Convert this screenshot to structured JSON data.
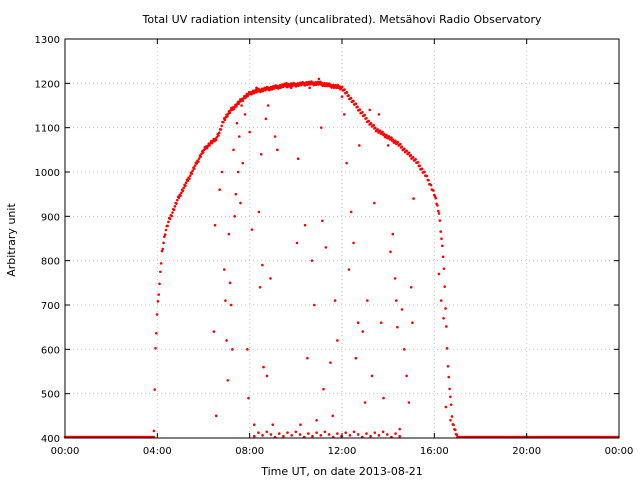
{
  "chart_data": {
    "type": "scatter",
    "title": "Total UV radiation intensity (uncalibrated). Metsähovi Radio Observatory",
    "xlabel": "Time UT, on date 2013-08-21",
    "ylabel": "Arbitrary unit",
    "x_unit": "hours UT",
    "xlim": [
      0,
      24
    ],
    "ylim": [
      400,
      1300
    ],
    "xticks": [
      0,
      4,
      8,
      12,
      16,
      20,
      24
    ],
    "xtick_labels": [
      "00:00",
      "04:00",
      "08:00",
      "12:00",
      "16:00",
      "20:00",
      "00:00"
    ],
    "yticks": [
      400,
      500,
      600,
      700,
      800,
      900,
      1000,
      1100,
      1200,
      1300
    ],
    "ytick_labels": [
      "400",
      "500",
      "600",
      "700",
      "800",
      "900",
      "1000",
      "1100",
      "1200",
      "1300"
    ],
    "grid": true,
    "series_color": "#ff0000",
    "envelope": {
      "x": [
        3.85,
        3.92,
        4.0,
        4.1,
        4.2,
        4.35,
        4.5,
        4.7,
        4.9,
        5.1,
        5.3,
        5.5,
        5.7,
        5.9,
        6.1,
        6.3,
        6.5,
        6.7,
        6.9,
        7.2,
        7.5,
        7.8,
        8.1,
        8.5,
        9.0,
        9.5,
        10.0,
        10.5,
        11.0,
        11.5,
        12.0,
        12.3,
        12.6,
        12.9,
        13.2,
        13.5,
        13.8,
        14.1,
        14.4,
        14.7,
        15.0,
        15.2,
        15.4,
        15.6,
        15.8,
        16.0,
        16.2,
        16.4,
        16.6,
        16.8,
        17.0
      ],
      "y": [
        420,
        600,
        690,
        750,
        820,
        865,
        890,
        915,
        940,
        960,
        980,
        1000,
        1020,
        1040,
        1055,
        1065,
        1072,
        1090,
        1120,
        1140,
        1155,
        1170,
        1180,
        1185,
        1190,
        1195,
        1197,
        1200,
        1200,
        1195,
        1190,
        1170,
        1150,
        1130,
        1110,
        1095,
        1085,
        1075,
        1065,
        1050,
        1035,
        1025,
        1010,
        995,
        975,
        950,
        910,
        800,
        550,
        430,
        405
      ]
    },
    "baseline": 402,
    "scatter_points": [
      {
        "x": 6.45,
        "y": 640
      },
      {
        "x": 6.5,
        "y": 880
      },
      {
        "x": 6.55,
        "y": 450
      },
      {
        "x": 6.7,
        "y": 960
      },
      {
        "x": 6.8,
        "y": 1000
      },
      {
        "x": 6.9,
        "y": 780
      },
      {
        "x": 6.95,
        "y": 710
      },
      {
        "x": 7.0,
        "y": 620
      },
      {
        "x": 7.05,
        "y": 530
      },
      {
        "x": 7.1,
        "y": 860
      },
      {
        "x": 7.15,
        "y": 750
      },
      {
        "x": 7.2,
        "y": 700
      },
      {
        "x": 7.25,
        "y": 600
      },
      {
        "x": 7.3,
        "y": 1050
      },
      {
        "x": 7.35,
        "y": 900
      },
      {
        "x": 7.4,
        "y": 950
      },
      {
        "x": 7.45,
        "y": 1110
      },
      {
        "x": 7.5,
        "y": 1000
      },
      {
        "x": 7.55,
        "y": 1080
      },
      {
        "x": 7.6,
        "y": 930
      },
      {
        "x": 7.65,
        "y": 1150
      },
      {
        "x": 7.7,
        "y": 1020
      },
      {
        "x": 7.8,
        "y": 1130
      },
      {
        "x": 7.85,
        "y": 1170
      },
      {
        "x": 7.9,
        "y": 600
      },
      {
        "x": 7.95,
        "y": 490
      },
      {
        "x": 8.0,
        "y": 1090
      },
      {
        "x": 8.1,
        "y": 870
      },
      {
        "x": 8.2,
        "y": 430
      },
      {
        "x": 8.3,
        "y": 1190
      },
      {
        "x": 8.4,
        "y": 910
      },
      {
        "x": 8.45,
        "y": 740
      },
      {
        "x": 8.5,
        "y": 1040
      },
      {
        "x": 8.55,
        "y": 790
      },
      {
        "x": 8.6,
        "y": 560
      },
      {
        "x": 8.7,
        "y": 1120
      },
      {
        "x": 8.75,
        "y": 540
      },
      {
        "x": 8.8,
        "y": 1150
      },
      {
        "x": 8.9,
        "y": 760
      },
      {
        "x": 9.0,
        "y": 430
      },
      {
        "x": 9.1,
        "y": 1080
      },
      {
        "x": 9.2,
        "y": 1050
      },
      {
        "x": 9.3,
        "y": 1190
      },
      {
        "x": 9.6,
        "y": 1200
      },
      {
        "x": 9.8,
        "y": 1190
      },
      {
        "x": 10.1,
        "y": 1030
      },
      {
        "x": 10.05,
        "y": 840
      },
      {
        "x": 10.2,
        "y": 430
      },
      {
        "x": 10.4,
        "y": 880
      },
      {
        "x": 10.5,
        "y": 580
      },
      {
        "x": 10.6,
        "y": 1190
      },
      {
        "x": 10.7,
        "y": 800
      },
      {
        "x": 10.8,
        "y": 700
      },
      {
        "x": 10.9,
        "y": 440
      },
      {
        "x": 11.0,
        "y": 1210
      },
      {
        "x": 11.1,
        "y": 1100
      },
      {
        "x": 11.15,
        "y": 890
      },
      {
        "x": 11.2,
        "y": 510
      },
      {
        "x": 11.3,
        "y": 830
      },
      {
        "x": 11.5,
        "y": 570
      },
      {
        "x": 11.6,
        "y": 450
      },
      {
        "x": 11.7,
        "y": 710
      },
      {
        "x": 11.8,
        "y": 620
      },
      {
        "x": 12.0,
        "y": 1170
      },
      {
        "x": 12.1,
        "y": 1130
      },
      {
        "x": 12.2,
        "y": 1020
      },
      {
        "x": 12.3,
        "y": 780
      },
      {
        "x": 12.4,
        "y": 910
      },
      {
        "x": 12.5,
        "y": 840
      },
      {
        "x": 12.6,
        "y": 580
      },
      {
        "x": 12.7,
        "y": 660
      },
      {
        "x": 12.75,
        "y": 1060
      },
      {
        "x": 12.9,
        "y": 640
      },
      {
        "x": 13.0,
        "y": 480
      },
      {
        "x": 13.1,
        "y": 710
      },
      {
        "x": 13.2,
        "y": 1140
      },
      {
        "x": 13.3,
        "y": 540
      },
      {
        "x": 13.4,
        "y": 930
      },
      {
        "x": 13.6,
        "y": 1130
      },
      {
        "x": 13.7,
        "y": 660
      },
      {
        "x": 13.8,
        "y": 490
      },
      {
        "x": 14.0,
        "y": 1060
      },
      {
        "x": 14.1,
        "y": 820
      },
      {
        "x": 14.2,
        "y": 860
      },
      {
        "x": 14.3,
        "y": 760
      },
      {
        "x": 14.35,
        "y": 710
      },
      {
        "x": 14.4,
        "y": 650
      },
      {
        "x": 14.5,
        "y": 420
      },
      {
        "x": 14.6,
        "y": 690
      },
      {
        "x": 14.7,
        "y": 600
      },
      {
        "x": 14.8,
        "y": 540
      },
      {
        "x": 14.9,
        "y": 480
      },
      {
        "x": 15.0,
        "y": 740
      },
      {
        "x": 15.05,
        "y": 660
      },
      {
        "x": 15.1,
        "y": 940
      },
      {
        "x": 16.2,
        "y": 770
      },
      {
        "x": 16.3,
        "y": 710
      },
      {
        "x": 16.4,
        "y": 670
      },
      {
        "x": 16.5,
        "y": 470
      },
      {
        "x": 16.7,
        "y": 440
      }
    ]
  }
}
